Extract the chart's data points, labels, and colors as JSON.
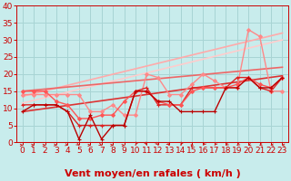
{
  "title": "",
  "xlabel": "Vent moyen/en rafales ( km/h )",
  "ylabel": "",
  "xlim": [
    -0.5,
    23.5
  ],
  "ylim": [
    0,
    40
  ],
  "xticks": [
    0,
    1,
    2,
    3,
    4,
    5,
    6,
    7,
    8,
    9,
    10,
    11,
    12,
    13,
    14,
    15,
    16,
    17,
    18,
    19,
    20,
    21,
    22,
    23
  ],
  "yticks": [
    0,
    5,
    10,
    15,
    20,
    25,
    30,
    35,
    40
  ],
  "background_color": "#c8ecec",
  "grid_color": "#a8d4d4",
  "series": [
    {
      "x": [
        0,
        1,
        2,
        3,
        4,
        5,
        6,
        7,
        8,
        9,
        10,
        11,
        12,
        13,
        14,
        15,
        16,
        17,
        18,
        19,
        20,
        21,
        22,
        23
      ],
      "y": [
        9,
        11,
        11,
        11,
        9,
        1,
        8,
        1,
        5,
        5,
        15,
        15,
        12,
        12,
        9,
        9,
        9,
        9,
        16,
        16,
        19,
        16,
        16,
        19
      ],
      "color": "#bb0000",
      "lw": 1.0,
      "marker": "+",
      "ms": 3.0,
      "zorder": 5
    },
    {
      "x": [
        0,
        1,
        2,
        3,
        4,
        5,
        6,
        7,
        8,
        9,
        10,
        11,
        12,
        13,
        14,
        15,
        16,
        17,
        18,
        19,
        20,
        21,
        22,
        23
      ],
      "y": [
        11,
        11,
        11,
        11,
        9,
        5,
        5,
        5,
        5,
        5,
        15,
        16,
        11,
        11,
        11,
        16,
        16,
        16,
        16,
        19,
        19,
        16,
        15,
        19
      ],
      "color": "#dd2222",
      "lw": 1.0,
      "marker": "+",
      "ms": 3.0,
      "zorder": 4
    },
    {
      "x": [
        0,
        1,
        2,
        3,
        4,
        5,
        6,
        7,
        8,
        9,
        10,
        11,
        12,
        13,
        14,
        15,
        16,
        17,
        18,
        19,
        20,
        21,
        22,
        23
      ],
      "y": [
        14,
        14,
        14,
        14,
        14,
        14,
        9,
        9,
        11,
        8,
        8,
        20,
        19,
        14,
        14,
        17,
        20,
        18,
        16,
        16,
        33,
        31,
        15,
        15
      ],
      "color": "#ff8888",
      "lw": 1.0,
      "marker": "D",
      "ms": 2.0,
      "zorder": 3
    },
    {
      "x": [
        0,
        1,
        2,
        3,
        4,
        5,
        6,
        7,
        8,
        9,
        10,
        11,
        12,
        13,
        14,
        15,
        16,
        17,
        18,
        19,
        20,
        21,
        22,
        23
      ],
      "y": [
        15,
        15,
        15,
        12,
        11,
        7,
        7,
        8,
        8,
        12,
        15,
        15,
        12,
        11,
        11,
        15,
        16,
        16,
        16,
        17,
        19,
        17,
        16,
        19
      ],
      "color": "#ff5555",
      "lw": 1.0,
      "marker": "D",
      "ms": 2.0,
      "zorder": 4
    },
    {
      "x": [
        0,
        23
      ],
      "y": [
        9.0,
        19.5
      ],
      "color": "#dd3333",
      "lw": 1.2,
      "marker": null,
      "ms": 0,
      "zorder": 2,
      "linestyle": "-"
    },
    {
      "x": [
        0,
        23
      ],
      "y": [
        13.5,
        32.0
      ],
      "color": "#ffaaaa",
      "lw": 1.2,
      "marker": null,
      "ms": 0,
      "zorder": 2,
      "linestyle": "-"
    },
    {
      "x": [
        0,
        23
      ],
      "y": [
        11.5,
        30.0
      ],
      "color": "#ffcccc",
      "lw": 1.2,
      "marker": null,
      "ms": 0,
      "zorder": 2,
      "linestyle": "-"
    },
    {
      "x": [
        0,
        23
      ],
      "y": [
        15.0,
        22.0
      ],
      "color": "#ee6666",
      "lw": 1.2,
      "marker": null,
      "ms": 0,
      "zorder": 2,
      "linestyle": "-"
    }
  ],
  "arrow_angles": [
    90,
    90,
    90,
    100,
    110,
    130,
    90,
    120,
    90,
    80,
    200,
    160,
    150,
    140,
    200,
    195,
    215,
    215,
    230,
    230,
    245,
    250,
    260,
    265
  ],
  "arrow_color": "#cc2222",
  "xlabel_color": "#cc0000",
  "xlabel_fontsize": 8,
  "tick_color": "#cc0000",
  "tick_fontsize": 6.5
}
